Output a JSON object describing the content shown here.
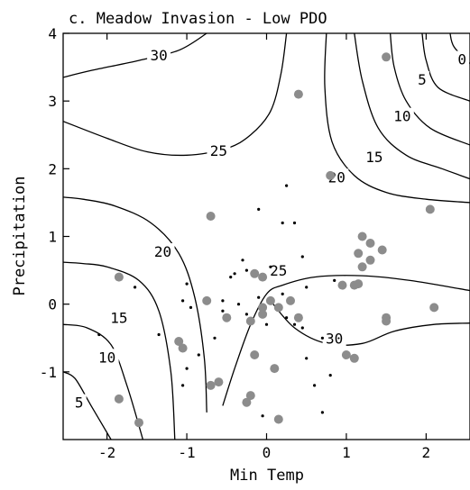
{
  "chart_data": {
    "type": "scatter",
    "title": "c. Meadow Invasion - Low PDO",
    "xlabel": "Min Temp",
    "ylabel": "Precipitation",
    "xlim": [
      -2.55,
      2.55
    ],
    "ylim": [
      -2.0,
      4.0
    ],
    "x_ticks": [
      -2,
      -1,
      0,
      1,
      2
    ],
    "x_tick_labels": [
      "-2",
      "-1",
      "0",
      "1",
      "2"
    ],
    "y_ticks": [
      -1,
      0,
      1,
      2,
      3,
      4
    ],
    "y_tick_labels": [
      "-1",
      "0",
      "1",
      "2",
      "3",
      "4"
    ],
    "grid": false,
    "legend": "none",
    "contour_lines": [
      {
        "level": "30",
        "points": [
          [
            -2.55,
            3.35
          ],
          [
            -2.2,
            3.45
          ],
          [
            -1.6,
            3.6
          ],
          [
            -1.1,
            3.75
          ],
          [
            -0.75,
            4.0
          ]
        ]
      },
      {
        "level": "25",
        "points": [
          [
            -2.55,
            2.7
          ],
          [
            -2.0,
            2.45
          ],
          [
            -1.5,
            2.25
          ],
          [
            -1.0,
            2.2
          ],
          [
            -0.5,
            2.3
          ],
          [
            -0.2,
            2.5
          ],
          [
            0.05,
            2.85
          ],
          [
            0.18,
            3.4
          ],
          [
            0.25,
            4.0
          ]
        ]
      },
      {
        "level": "20",
        "points": [
          [
            -0.75,
            -1.6
          ],
          [
            -0.78,
            -0.8
          ],
          [
            -0.9,
            0.1
          ],
          [
            -1.1,
            0.75
          ],
          [
            -1.45,
            1.2
          ],
          [
            -1.9,
            1.45
          ],
          [
            -2.3,
            1.55
          ],
          [
            -2.55,
            1.58
          ]
        ]
      },
      {
        "level": "20",
        "points": [
          [
            0.75,
            4.0
          ],
          [
            0.73,
            3.2
          ],
          [
            0.82,
            2.4
          ],
          [
            1.1,
            1.9
          ],
          [
            1.5,
            1.65
          ],
          [
            2.0,
            1.55
          ],
          [
            2.55,
            1.5
          ]
        ]
      },
      {
        "level": "15",
        "points": [
          [
            -1.15,
            -2.0
          ],
          [
            -1.2,
            -1.0
          ],
          [
            -1.35,
            -0.1
          ],
          [
            -1.6,
            0.35
          ],
          [
            -2.0,
            0.55
          ],
          [
            -2.3,
            0.6
          ],
          [
            -2.55,
            0.62
          ]
        ]
      },
      {
        "level": "15",
        "points": [
          [
            1.1,
            4.0
          ],
          [
            1.2,
            3.3
          ],
          [
            1.4,
            2.6
          ],
          [
            1.75,
            2.2
          ],
          [
            2.2,
            2.0
          ],
          [
            2.55,
            1.85
          ]
        ]
      },
      {
        "level": "10",
        "points": [
          [
            -1.55,
            -2.0
          ],
          [
            -1.75,
            -1.2
          ],
          [
            -1.95,
            -0.6
          ],
          [
            -2.25,
            -0.35
          ],
          [
            -2.55,
            -0.3
          ]
        ]
      },
      {
        "level": "10",
        "points": [
          [
            1.55,
            4.0
          ],
          [
            1.6,
            3.5
          ],
          [
            1.75,
            3.0
          ],
          [
            2.05,
            2.6
          ],
          [
            2.55,
            2.35
          ]
        ]
      },
      {
        "level": "5",
        "points": [
          [
            -1.95,
            -2.0
          ],
          [
            -2.2,
            -1.5
          ],
          [
            -2.4,
            -1.1
          ],
          [
            -2.55,
            -1.0
          ]
        ]
      },
      {
        "level": "5",
        "points": [
          [
            1.95,
            4.0
          ],
          [
            2.0,
            3.6
          ],
          [
            2.15,
            3.2
          ],
          [
            2.55,
            3.0
          ]
        ]
      },
      {
        "level": "0",
        "points": [
          [
            2.3,
            4.0
          ],
          [
            2.35,
            3.8
          ],
          [
            2.55,
            3.55
          ]
        ]
      },
      {
        "level": "25",
        "points": [
          [
            -0.55,
            -1.5
          ],
          [
            -0.4,
            -0.95
          ],
          [
            -0.2,
            -0.3
          ],
          [
            0.0,
            0.15
          ],
          [
            0.2,
            0.28
          ],
          [
            0.6,
            0.4
          ],
          [
            1.2,
            0.42
          ],
          [
            1.8,
            0.35
          ],
          [
            2.55,
            0.2
          ]
        ]
      },
      {
        "level": "30",
        "points": [
          [
            0.05,
            0.05
          ],
          [
            0.35,
            -0.35
          ],
          [
            0.75,
            -0.58
          ],
          [
            1.2,
            -0.58
          ],
          [
            1.6,
            -0.4
          ],
          [
            2.1,
            -0.3
          ],
          [
            2.55,
            -0.28
          ]
        ]
      }
    ],
    "contour_labels": [
      {
        "text": "30",
        "x": -1.35,
        "y": 3.68
      },
      {
        "text": "25",
        "x": -0.6,
        "y": 2.27
      },
      {
        "text": "20",
        "x": -1.3,
        "y": 0.78
      },
      {
        "text": "20",
        "x": 0.88,
        "y": 1.88
      },
      {
        "text": "15",
        "x": -1.85,
        "y": -0.2
      },
      {
        "text": "15",
        "x": 1.35,
        "y": 2.18
      },
      {
        "text": "10",
        "x": -2.0,
        "y": -0.78
      },
      {
        "text": "10",
        "x": 1.7,
        "y": 2.78
      },
      {
        "text": "5",
        "x": -2.35,
        "y": -1.45
      },
      {
        "text": "5",
        "x": 1.95,
        "y": 3.32
      },
      {
        "text": "0",
        "x": 2.45,
        "y": 3.62
      },
      {
        "text": "25",
        "x": 0.15,
        "y": 0.5
      },
      {
        "text": "30",
        "x": 0.85,
        "y": -0.5
      }
    ],
    "series": [
      {
        "marker": "large-gray",
        "color": "#8c8c8c",
        "points": [
          [
            1.5,
            3.65
          ],
          [
            0.4,
            3.1
          ],
          [
            0.8,
            1.9
          ],
          [
            2.05,
            1.4
          ],
          [
            -0.7,
            1.3
          ],
          [
            1.2,
            1.0
          ],
          [
            1.3,
            0.9
          ],
          [
            1.45,
            0.8
          ],
          [
            1.15,
            0.75
          ],
          [
            1.3,
            0.65
          ],
          [
            1.2,
            0.55
          ],
          [
            -1.85,
            0.4
          ],
          [
            -0.15,
            0.45
          ],
          [
            -0.05,
            0.4
          ],
          [
            1.15,
            0.3
          ],
          [
            1.1,
            0.28
          ],
          [
            0.95,
            0.28
          ],
          [
            0.3,
            0.05
          ],
          [
            0.05,
            0.05
          ],
          [
            -0.05,
            -0.05
          ],
          [
            0.15,
            -0.05
          ],
          [
            -0.75,
            0.05
          ],
          [
            2.1,
            -0.05
          ],
          [
            -0.05,
            -0.15
          ],
          [
            -0.5,
            -0.2
          ],
          [
            -0.2,
            -0.25
          ],
          [
            0.4,
            -0.2
          ],
          [
            1.5,
            -0.2
          ],
          [
            1.5,
            -0.25
          ],
          [
            -1.1,
            -0.55
          ],
          [
            -1.05,
            -0.65
          ],
          [
            -0.15,
            -0.75
          ],
          [
            1.0,
            -0.75
          ],
          [
            1.1,
            -0.8
          ],
          [
            0.1,
            -0.95
          ],
          [
            -0.6,
            -1.15
          ],
          [
            -0.7,
            -1.2
          ],
          [
            -0.2,
            -1.35
          ],
          [
            -1.85,
            -1.4
          ],
          [
            -0.25,
            -1.45
          ],
          [
            -1.6,
            -1.75
          ],
          [
            0.15,
            -1.7
          ]
        ]
      },
      {
        "marker": "small-black",
        "color": "#000000",
        "points": [
          [
            0.25,
            1.75
          ],
          [
            -0.1,
            1.4
          ],
          [
            0.2,
            1.2
          ],
          [
            0.35,
            1.2
          ],
          [
            0.45,
            0.7
          ],
          [
            -0.3,
            0.65
          ],
          [
            -0.25,
            0.5
          ],
          [
            0.05,
            0.55
          ],
          [
            -0.45,
            0.4
          ],
          [
            -0.4,
            0.45
          ],
          [
            -1.65,
            0.25
          ],
          [
            -1.0,
            0.3
          ],
          [
            0.85,
            0.35
          ],
          [
            0.5,
            0.25
          ],
          [
            -1.05,
            0.05
          ],
          [
            -0.95,
            -0.05
          ],
          [
            -0.55,
            0.05
          ],
          [
            -0.35,
            0.0
          ],
          [
            -0.1,
            0.1
          ],
          [
            0.2,
            0.15
          ],
          [
            -0.55,
            -0.1
          ],
          [
            -0.25,
            -0.15
          ],
          [
            0.25,
            -0.2
          ],
          [
            0.0,
            -0.3
          ],
          [
            0.35,
            -0.3
          ],
          [
            0.45,
            -0.35
          ],
          [
            -2.1,
            -0.45
          ],
          [
            -1.35,
            -0.45
          ],
          [
            -0.65,
            -0.5
          ],
          [
            0.7,
            -0.5
          ],
          [
            -0.85,
            -0.75
          ],
          [
            0.5,
            -0.8
          ],
          [
            -1.0,
            -0.95
          ],
          [
            0.8,
            -1.05
          ],
          [
            0.6,
            -1.2
          ],
          [
            -1.05,
            -1.2
          ],
          [
            0.7,
            -1.6
          ],
          [
            -0.05,
            -1.65
          ]
        ]
      }
    ]
  }
}
